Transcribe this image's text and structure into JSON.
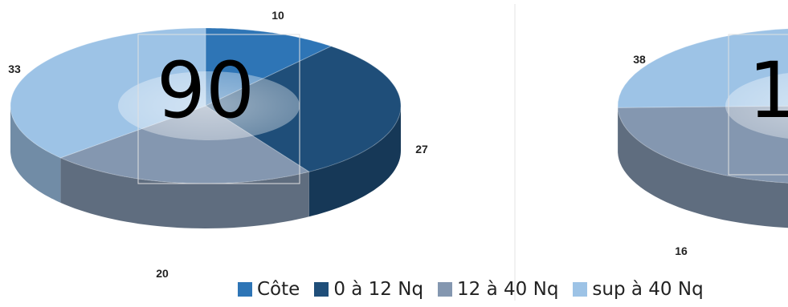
{
  "chart_data": [
    {
      "type": "pie",
      "total_label": "90",
      "categories": [
        "Côte",
        "0 à 12 Nq",
        "12 à 40 Nq",
        "sup à 40 Nq"
      ],
      "values": [
        10,
        27,
        20,
        33
      ],
      "data_labels": [
        "10",
        "27",
        "20",
        "33"
      ]
    },
    {
      "type": "pie",
      "total_label": "1",
      "categories": [
        "12 à 40 Nq",
        "sup à 40 Nq"
      ],
      "values": [
        16,
        38
      ],
      "data_labels": [
        "16",
        "38"
      ],
      "note": "chart partially cropped at right edge"
    }
  ],
  "legend": {
    "items": [
      {
        "label": "Côte",
        "color": "#2e75b6"
      },
      {
        "label": "0 à 12 Nq",
        "color": "#1f4e79"
      },
      {
        "label": "12 à 40 Nq",
        "color": "#8497b0"
      },
      {
        "label": "sup à 40 Nq",
        "color": "#9dc3e6"
      }
    ]
  },
  "colors": {
    "Côte": "#2e75b6",
    "0 à 12 Nq": "#1f4e79",
    "12 à 40 Nq": "#8497b0",
    "sup à 40 Nq": "#9dc3e6"
  }
}
